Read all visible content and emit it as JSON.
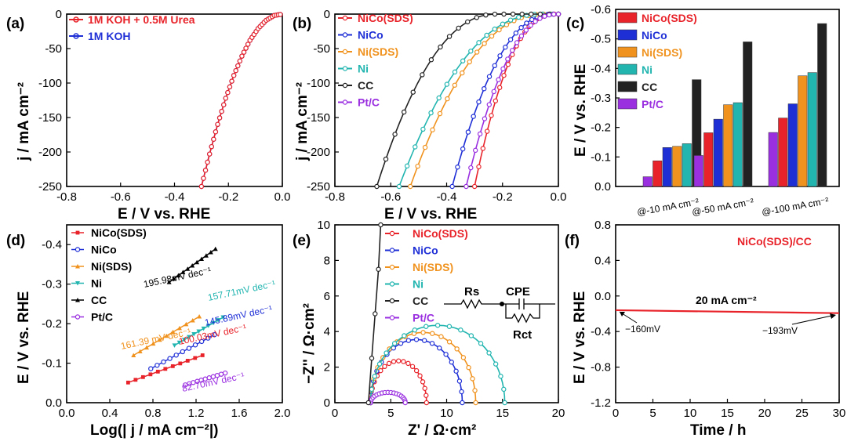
{
  "panels": {
    "a": {
      "label": "(a)",
      "ylabel": "j / mA cm⁻²",
      "xlabel": "E / V vs. RHE",
      "xlim": [
        -0.8,
        0.0
      ],
      "ylim": [
        -250,
        0
      ],
      "xticks": [
        "-0.8",
        "-0.6",
        "-0.4",
        "-0.2",
        "0.0"
      ],
      "yticks": [
        "0",
        "-50",
        "-100",
        "-150",
        "-200",
        "-250"
      ],
      "legend": [
        "1M KOH + 0.5M Urea",
        "1M KOH"
      ]
    },
    "b": {
      "label": "(b)",
      "ylabel": "j / mA cm⁻²",
      "xlabel": "E / V vs. RHE",
      "xticks": [
        "-0.8",
        "-0.6",
        "-0.4",
        "-0.2",
        "0.0"
      ],
      "yticks": [
        "0",
        "-50",
        "-100",
        "-150",
        "-200",
        "-250"
      ],
      "legend": [
        "NiCo(SDS)",
        "NiCo",
        "Ni(SDS)",
        "Ni",
        "CC",
        "Pt/C"
      ]
    },
    "c": {
      "label": "(c)",
      "ylabel": "E / V vs. RHE",
      "yticks": [
        "-0.6",
        "-0.5",
        "-0.4",
        "-0.3",
        "-0.2",
        "-0.1",
        "0.0"
      ],
      "legend": [
        "NiCo(SDS)",
        "NiCo",
        "Ni(SDS)",
        "Ni",
        "CC",
        "Pt/C"
      ]
    },
    "d": {
      "label": "(d)",
      "ylabel": "E / V vs. RHE",
      "xlabel": "Log(| j / mA cm⁻²|)",
      "xticks": [
        "0.0",
        "0.4",
        "0.8",
        "1.2",
        "1.6",
        "2.0"
      ],
      "yticks": [
        "-0.4",
        "-0.3",
        "-0.2",
        "-0.1",
        "0.0"
      ],
      "legend": [
        "NiCo(SDS)",
        "NiCo",
        "Ni(SDS)",
        "Ni",
        "CC",
        "Pt/C"
      ],
      "slopes": [
        "100.03mV dec⁻¹",
        "145.89mV dec⁻¹",
        "161.39 mV dec⁻¹",
        "157.71mV dec⁻¹",
        "195.98mV dec⁻¹",
        "82.70mV dec⁻¹"
      ]
    },
    "e": {
      "label": "(e)",
      "ylabel": "−Z'' / Ω·cm²",
      "xlabel": "Z' / Ω·cm²",
      "xticks": [
        "0",
        "5",
        "10",
        "15",
        "20"
      ],
      "yticks": [
        "0",
        "2",
        "4",
        "6",
        "8",
        "10"
      ],
      "legend": [
        "NiCo(SDS)",
        "NiCo",
        "Ni(SDS)",
        "Ni",
        "CC",
        "Pt/C"
      ],
      "circuit": {
        "rs": "Rs",
        "cpe": "CPE",
        "rct": "Rct"
      }
    },
    "f": {
      "label": "(f)",
      "ylabel": "E / V vs. RHE",
      "xlabel": "Time / h",
      "xticks": [
        "0",
        "5",
        "10",
        "15",
        "20",
        "25",
        "30"
      ],
      "yticks": [
        "0.8",
        "0.4",
        "0.0",
        "-0.4",
        "-0.8",
        "-1.2"
      ],
      "legend": "NiCo(SDS)/CC",
      "annot_current": "20 mA cm⁻²",
      "annot_start": "−160mV",
      "annot_end": "−193mV"
    }
  },
  "colors": {
    "NiCo(SDS)": "#e8232a",
    "NiCo": "#1f2fd6",
    "Ni(SDS)": "#f0921e",
    "Ni": "#22b5b0",
    "CC": "#222222",
    "Pt/C": "#9a2fe0",
    "urea": "#e8232a",
    "koh": "#1f2fd6"
  },
  "chart_data": [
    {
      "type": "line",
      "title": "(a)",
      "xlabel": "E / V vs. RHE",
      "ylabel": "j / mA cm⁻²",
      "xlim": [
        -0.8,
        0.0
      ],
      "ylim": [
        -250,
        0
      ],
      "series": [
        {
          "name": "1M KOH + 0.5M Urea",
          "x": [
            -0.3,
            -0.27,
            -0.24,
            -0.21,
            -0.18,
            -0.15,
            -0.12,
            -0.09,
            -0.06,
            -0.03,
            0.0
          ],
          "y": [
            -250,
            -203,
            -160,
            -122,
            -89,
            -61,
            -38,
            -21,
            -9,
            -2,
            0
          ]
        },
        {
          "name": "1M KOH",
          "x": [
            -0.3,
            -0.27,
            -0.24,
            -0.21,
            -0.18,
            -0.15,
            -0.12,
            -0.09,
            -0.06,
            -0.03,
            0.0
          ],
          "y": [
            -250,
            -203,
            -160,
            -122,
            -89,
            -61,
            -38,
            -21,
            -9,
            -2,
            0
          ]
        }
      ]
    },
    {
      "type": "line",
      "title": "(b)",
      "xlabel": "E / V vs. RHE",
      "ylabel": "j / mA cm⁻²",
      "xlim": [
        -0.8,
        0.0
      ],
      "ylim": [
        -250,
        0
      ],
      "series": [
        {
          "name": "NiCo(SDS)",
          "onset": -0.02,
          "e250": -0.3
        },
        {
          "name": "NiCo",
          "onset": -0.02,
          "e250": -0.38
        },
        {
          "name": "Ni(SDS)",
          "onset": -0.05,
          "e250": -0.53
        },
        {
          "name": "Ni",
          "onset": -0.06,
          "e250": -0.57
        },
        {
          "name": "CC",
          "onset": -0.22,
          "e250": -0.65
        },
        {
          "name": "Pt/C",
          "onset": -0.005,
          "e250": -0.33
        }
      ]
    },
    {
      "type": "bar",
      "title": "(c)",
      "ylabel": "E / V vs. RHE",
      "ylim": [
        0.0,
        -0.6
      ],
      "categories": [
        "@-10 mA cm⁻²",
        "@-50 mA cm⁻²",
        "@-100 mA cm⁻²"
      ],
      "series": [
        {
          "name": "Pt/C",
          "values": [
            -0.033,
            -0.105,
            -0.183
          ]
        },
        {
          "name": "NiCo(SDS)",
          "values": [
            -0.087,
            -0.182,
            -0.232
          ]
        },
        {
          "name": "NiCo",
          "values": [
            -0.132,
            -0.228,
            -0.28
          ]
        },
        {
          "name": "Ni(SDS)",
          "values": [
            -0.136,
            -0.277,
            -0.375
          ]
        },
        {
          "name": "Ni",
          "values": [
            -0.145,
            -0.284,
            -0.386
          ]
        },
        {
          "name": "CC",
          "values": [
            -0.362,
            -0.49,
            -0.552
          ]
        }
      ]
    },
    {
      "type": "line",
      "title": "(d)",
      "xlabel": "Log(| j / mA cm⁻²|)",
      "ylabel": "E / V vs. RHE",
      "xlim": [
        0.0,
        2.0
      ],
      "ylim": [
        0.0,
        -0.45
      ],
      "series": [
        {
          "name": "NiCo(SDS)",
          "x": [
            0.57,
            1.26
          ],
          "y": [
            -0.051,
            -0.12
          ]
        },
        {
          "name": "NiCo",
          "x": [
            0.78,
            1.37
          ],
          "y": [
            -0.086,
            -0.172
          ]
        },
        {
          "name": "Ni(SDS)",
          "x": [
            0.62,
            1.23
          ],
          "y": [
            -0.12,
            -0.218
          ]
        },
        {
          "name": "Ni",
          "x": [
            1.0,
            1.45
          ],
          "y": [
            -0.145,
            -0.216
          ]
        },
        {
          "name": "CC",
          "x": [
            0.95,
            1.38
          ],
          "y": [
            -0.305,
            -0.389
          ]
        },
        {
          "name": "Pt/C",
          "x": [
            1.1,
            1.47
          ],
          "y": [
            -0.045,
            -0.075
          ]
        }
      ]
    },
    {
      "type": "line",
      "title": "(e)",
      "xlabel": "Z' / Ω·cm²",
      "ylabel": "−Z'' / Ω·cm²",
      "xlim": [
        0,
        20
      ],
      "ylim": [
        0,
        10
      ],
      "series": [
        {
          "name": "NiCo(SDS)",
          "rs": 3.2,
          "rct": 5.0,
          "peak": 2.35
        },
        {
          "name": "NiCo",
          "rs": 3.2,
          "rct": 8.2,
          "peak": 3.55
        },
        {
          "name": "Ni(SDS)",
          "rs": 3.2,
          "rct": 9.4,
          "peak": 3.95
        },
        {
          "name": "Ni",
          "rs": 3.2,
          "rct": 12.0,
          "peak": 4.35
        },
        {
          "name": "Pt/C",
          "rs": 3.2,
          "rct": 3.1,
          "peak": 0.58
        },
        {
          "name": "CC",
          "x": [
            3.0,
            3.3,
            3.6,
            3.9,
            4.1
          ],
          "y": [
            0,
            2.5,
            5.0,
            7.5,
            10.0
          ]
        }
      ]
    },
    {
      "type": "line",
      "title": "(f)",
      "xlabel": "Time / h",
      "ylabel": "E / V vs. RHE",
      "xlim": [
        0,
        30
      ],
      "ylim": [
        -1.2,
        0.8
      ],
      "series": [
        {
          "name": "NiCo(SDS)/CC",
          "x": [
            0,
            30
          ],
          "y": [
            -0.16,
            -0.193
          ]
        }
      ]
    }
  ]
}
